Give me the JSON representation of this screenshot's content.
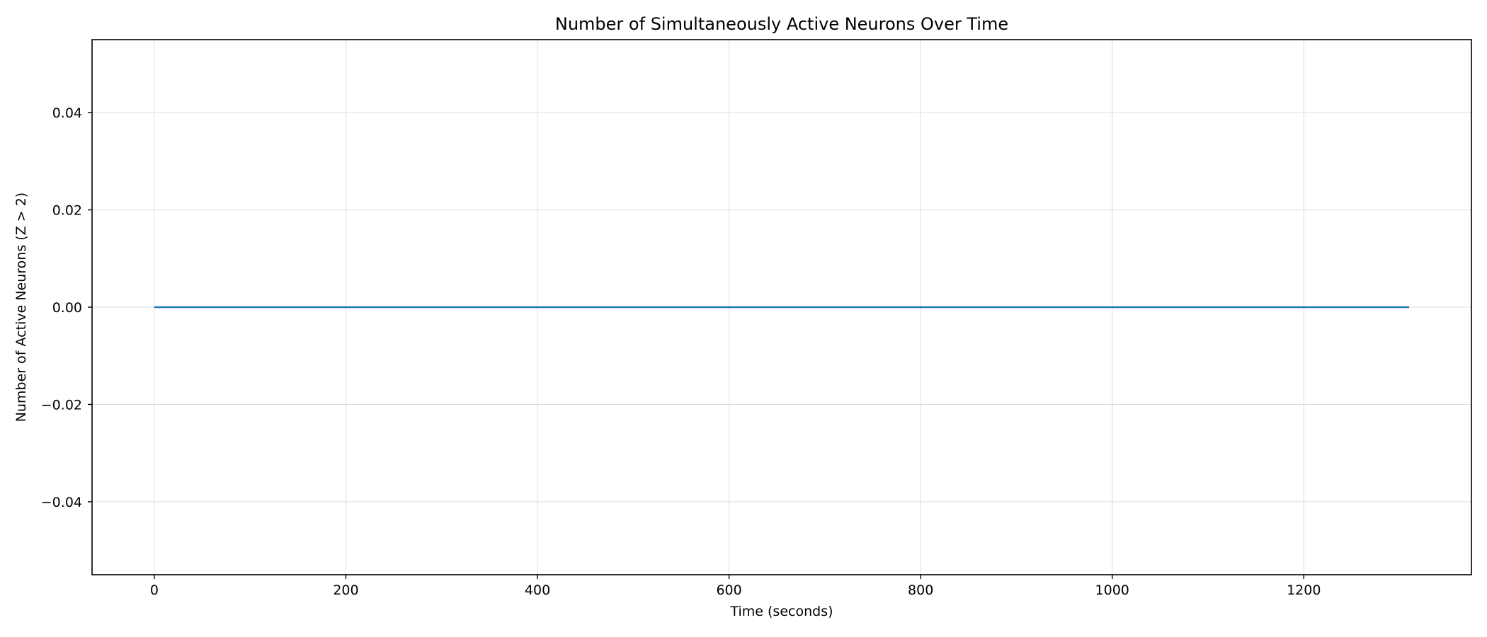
{
  "chart_data": {
    "type": "line",
    "title": "Number of Simultaneously Active Neurons Over Time",
    "xlabel": "Time (seconds)",
    "ylabel": "Number of Active Neurons (Z > 2)",
    "xlim": [
      -65,
      1375
    ],
    "ylim": [
      -0.055,
      0.055
    ],
    "xticks": [
      0,
      200,
      400,
      600,
      800,
      1000,
      1200
    ],
    "xtick_labels": [
      "0",
      "200",
      "400",
      "600",
      "800",
      "1000",
      "1200"
    ],
    "yticks": [
      -0.04,
      -0.02,
      0.0,
      0.02,
      0.04
    ],
    "ytick_labels": [
      "−0.04",
      "−0.02",
      "0.00",
      "0.02",
      "0.04"
    ],
    "grid": true,
    "series": [
      {
        "color": "#1f77b4",
        "x": [
          0,
          1310
        ],
        "y": [
          0,
          0
        ]
      }
    ]
  }
}
